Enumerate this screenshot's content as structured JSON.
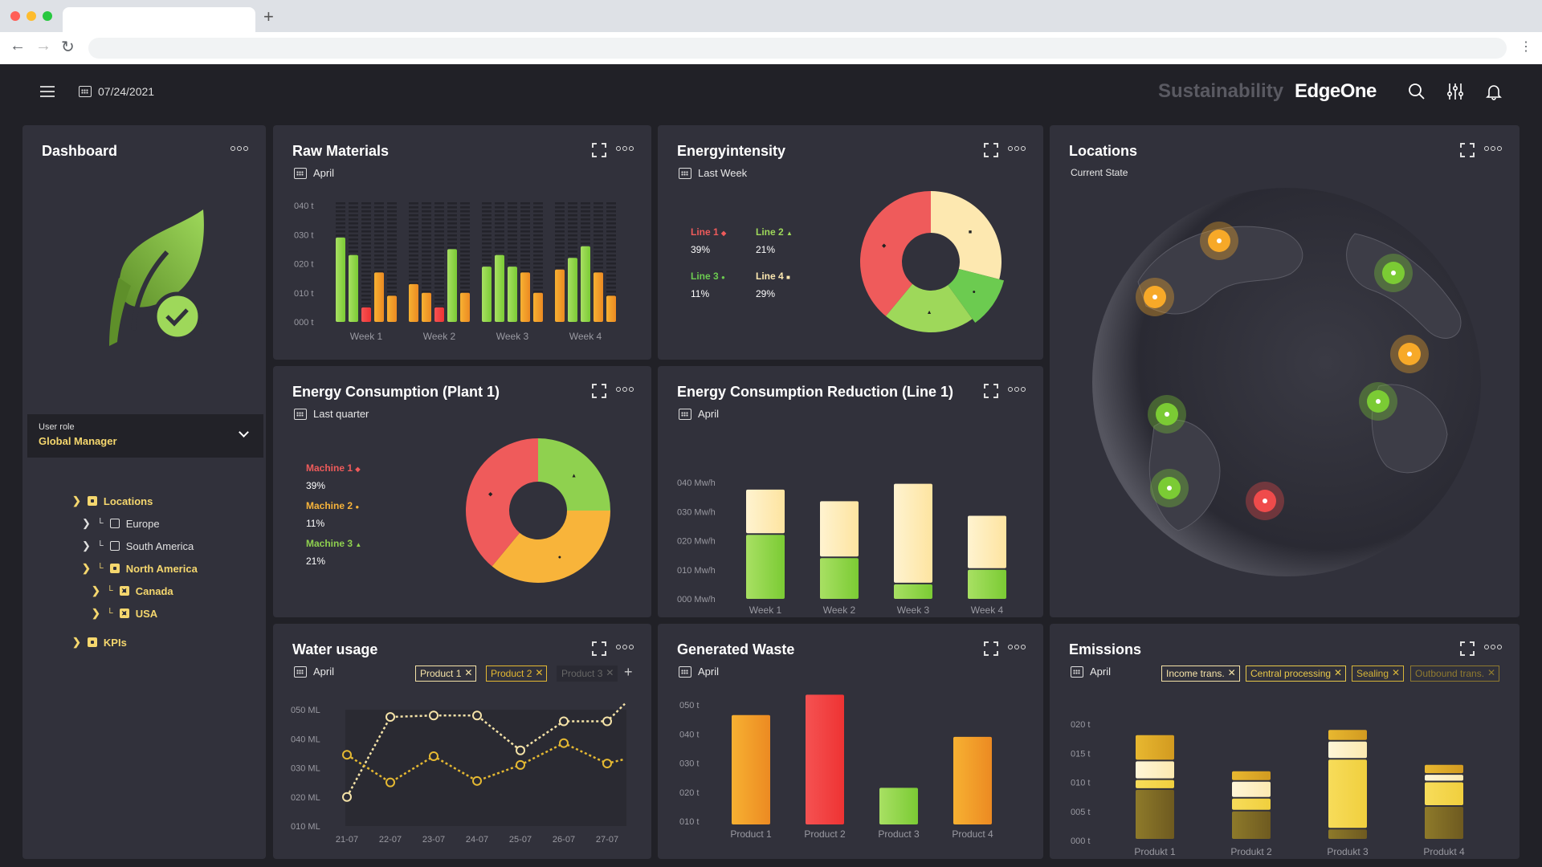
{
  "browser": {
    "new_tab_label": "+"
  },
  "topbar": {
    "date": "07/24/2021",
    "brand_prefix": "Sustainability",
    "brand_name": "EdgeOne"
  },
  "colors": {
    "accent": "#f5d76e",
    "green": "#8fd14f",
    "orange": "#f5a623",
    "red": "#ef5b5b",
    "cream": "#fde8b0",
    "card_bg": "#31313b",
    "app_bg": "#212127"
  },
  "sidebar": {
    "title": "Dashboard",
    "user_role_label": "User role",
    "user_role_value": "Global Manager",
    "tree": [
      {
        "label": "Locations",
        "level": 0,
        "active": true,
        "icon": "filled-square"
      },
      {
        "label": "Europe",
        "level": 1,
        "active": false,
        "icon": "outline-square"
      },
      {
        "label": "South America",
        "level": 1,
        "active": false,
        "icon": "outline-square"
      },
      {
        "label": "North America",
        "level": 1,
        "active": true,
        "icon": "filled-square"
      },
      {
        "label": "Canada",
        "level": 2,
        "active": true,
        "icon": "x-square"
      },
      {
        "label": "USA",
        "level": 2,
        "active": true,
        "icon": "x-square"
      },
      {
        "label": "KPIs",
        "level": 0,
        "active": true,
        "icon": "filled-square"
      }
    ]
  },
  "cards": {
    "raw": {
      "title": "Raw Materials",
      "period": "April"
    },
    "energyint": {
      "title": "Energyintensity",
      "period": "Last Week"
    },
    "locations": {
      "title": "Locations",
      "subtitle": "Current State"
    },
    "plant": {
      "title": "Energy Consumption (Plant 1)",
      "period": "Last quarter"
    },
    "reduction": {
      "title": "Energy Consumption Reduction (Line 1)",
      "period": "April"
    },
    "water": {
      "title": "Water usage",
      "period": "April",
      "chips": [
        "Product 1",
        "Product 2",
        "Product 3"
      ]
    },
    "waste": {
      "title": "Generated Waste",
      "period": "April"
    },
    "emissions": {
      "title": "Emissions",
      "period": "April",
      "chips": [
        "Income trans.",
        "Central processing",
        "Sealing",
        "Outbound trans."
      ]
    }
  },
  "chart_data": [
    {
      "id": "raw",
      "type": "bar",
      "title": "Raw Materials",
      "categories": [
        "Week 1",
        "Week 2",
        "Week 3",
        "Week 4"
      ],
      "yticks": [
        "000 t",
        "010 t",
        "020 t",
        "030 t",
        "040 t"
      ],
      "ylim": [
        0,
        40
      ],
      "values": [
        [
          29,
          23,
          5,
          17,
          9
        ],
        [
          13,
          10,
          5,
          25,
          10
        ],
        [
          19,
          23,
          19,
          17,
          10
        ],
        [
          18,
          22,
          26,
          17,
          9
        ]
      ],
      "bar_colors": [
        [
          "green",
          "green",
          "red",
          "orange",
          "orange"
        ],
        [
          "orange",
          "orange",
          "red",
          "green",
          "orange"
        ],
        [
          "green",
          "green",
          "green",
          "orange",
          "orange"
        ],
        [
          "orange",
          "green",
          "green",
          "orange",
          "orange"
        ]
      ]
    },
    {
      "id": "energyint",
      "type": "pie",
      "title": "Energyintensity",
      "slices": [
        {
          "label": "Line 1",
          "value": 39,
          "pct": "39%",
          "color": "#ef5b5b",
          "marker": "◆"
        },
        {
          "label": "Line 2",
          "value": 21,
          "pct": "21%",
          "color": "#9ed85a",
          "marker": "▲"
        },
        {
          "label": "Line 3",
          "value": 11,
          "pct": "11%",
          "color": "#6ccb50",
          "marker": "●"
        },
        {
          "label": "Line 4",
          "value": 29,
          "pct": "29%",
          "color": "#fde8b0",
          "marker": "■"
        }
      ]
    },
    {
      "id": "plant",
      "type": "pie",
      "title": "Energy Consumption (Plant 1)",
      "slices": [
        {
          "label": "Machine 1",
          "value": 39,
          "pct": "39%",
          "color": "#ef5b5b",
          "marker": "◆"
        },
        {
          "label": "Machine 2",
          "value": 11,
          "pct": "11%",
          "color": "#f8b43a",
          "marker": "●"
        },
        {
          "label": "Machine 3",
          "value": 21,
          "pct": "21%",
          "color": "#8fd14f",
          "marker": "▲"
        }
      ]
    },
    {
      "id": "reduction",
      "type": "bar",
      "title": "Energy Consumption Reduction (Line 1)",
      "categories": [
        "Week 1",
        "Week 2",
        "Week 3",
        "Week 4"
      ],
      "yticks": [
        "000 Mw/h",
        "010 Mw/h",
        "020 Mw/h",
        "030 Mw/h",
        "040 Mw/h"
      ],
      "ylim": [
        0,
        40
      ],
      "series": [
        {
          "name": "actual",
          "values": [
            22,
            14,
            5,
            10
          ]
        },
        {
          "name": "reduction",
          "values": [
            15,
            19,
            34,
            18
          ]
        }
      ]
    },
    {
      "id": "water",
      "type": "line",
      "title": "Water usage",
      "x": [
        "21-07",
        "22-07",
        "23-07",
        "24-07",
        "25-07",
        "26-07",
        "27-07"
      ],
      "yticks": [
        "010 ML",
        "020 ML",
        "030 ML",
        "040 ML",
        "050 ML"
      ],
      "ylim": [
        10,
        50
      ],
      "series": [
        {
          "name": "Product 1",
          "values": [
            20,
            47.5,
            48,
            48,
            36,
            46,
            46
          ],
          "end": 52
        },
        {
          "name": "Product 2",
          "values": [
            34.5,
            25,
            34,
            25.5,
            31,
            38.5,
            31.5
          ],
          "end": 33
        }
      ]
    },
    {
      "id": "waste",
      "type": "bar",
      "title": "Generated Waste",
      "categories": [
        "Product 1",
        "Product 2",
        "Product 3",
        "Product 4"
      ],
      "yticks": [
        "010 t",
        "020 t",
        "030 t",
        "040 t",
        "050 t"
      ],
      "ylim": [
        10,
        50
      ],
      "values": [
        46.5,
        53.5,
        21.5,
        39
      ],
      "bar_colors": [
        "orange",
        "red",
        "green",
        "orange"
      ]
    },
    {
      "id": "emissions",
      "type": "bar",
      "title": "Emissions",
      "categories": [
        "Produkt 1",
        "Produkt 2",
        "Produkt 3",
        "Produkt 4"
      ],
      "yticks": [
        "000 t",
        "005 t",
        "010 t",
        "015 t",
        "020 t"
      ],
      "ylim": [
        0,
        20
      ],
      "series": [
        {
          "name": "Outbound trans.",
          "values": [
            8.7,
            5,
            1.9,
            5.8
          ]
        },
        {
          "name": "Sealing",
          "values": [
            1.7,
            2.2,
            12,
            4.2
          ]
        },
        {
          "name": "Central processing",
          "values": [
            3.2,
            2.9,
            3.1,
            1.3
          ]
        },
        {
          "name": "Income trans.",
          "values": [
            4.5,
            1.8,
            2,
            1.7
          ]
        }
      ]
    }
  ],
  "map": {
    "markers": [
      {
        "status": "orange",
        "name": "marker-1"
      },
      {
        "status": "orange",
        "name": "marker-2"
      },
      {
        "status": "green",
        "name": "marker-3"
      },
      {
        "status": "orange",
        "name": "marker-4"
      },
      {
        "status": "green",
        "name": "marker-5"
      },
      {
        "status": "green",
        "name": "marker-6"
      },
      {
        "status": "green",
        "name": "marker-7"
      },
      {
        "status": "red",
        "name": "marker-8"
      }
    ]
  }
}
